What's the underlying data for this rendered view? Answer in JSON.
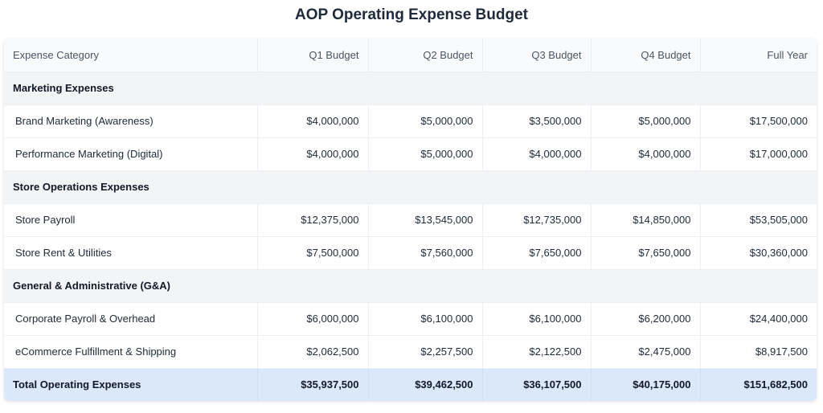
{
  "title": "AOP Operating Expense Budget",
  "columns": [
    "Expense Category",
    "Q1 Budget",
    "Q2 Budget",
    "Q3 Budget",
    "Q4 Budget",
    "Full Year"
  ],
  "sections": [
    {
      "name": "Marketing Expenses",
      "rows": [
        {
          "category": "Brand Marketing (Awareness)",
          "values": [
            "$4,000,000",
            "$5,000,000",
            "$3,500,000",
            "$5,000,000",
            "$17,500,000"
          ]
        },
        {
          "category": "Performance Marketing (Digital)",
          "values": [
            "$4,000,000",
            "$5,000,000",
            "$4,000,000",
            "$4,000,000",
            "$17,000,000"
          ]
        }
      ]
    },
    {
      "name": "Store Operations Expenses",
      "rows": [
        {
          "category": "Store Payroll",
          "values": [
            "$12,375,000",
            "$13,545,000",
            "$12,735,000",
            "$14,850,000",
            "$53,505,000"
          ]
        },
        {
          "category": "Store Rent & Utilities",
          "values": [
            "$7,500,000",
            "$7,560,000",
            "$7,650,000",
            "$7,650,000",
            "$30,360,000"
          ]
        }
      ]
    },
    {
      "name": "General & Administrative (G&A)",
      "rows": [
        {
          "category": "Corporate Payroll & Overhead",
          "values": [
            "$6,000,000",
            "$6,100,000",
            "$6,100,000",
            "$6,200,000",
            "$24,400,000"
          ]
        },
        {
          "category": "eCommerce Fulfillment & Shipping",
          "values": [
            "$2,062,500",
            "$2,257,500",
            "$2,122,500",
            "$2,475,000",
            "$8,917,500"
          ]
        }
      ]
    }
  ],
  "total": {
    "label": "Total Operating Expenses",
    "values": [
      "$35,937,500",
      "$39,462,500",
      "$36,107,500",
      "$40,175,000",
      "$151,682,500"
    ]
  },
  "colors": {
    "total_row_bg": "#dbe8fb",
    "section_row_bg": "#f3f4f6",
    "header_bg": "#f8fafc"
  }
}
